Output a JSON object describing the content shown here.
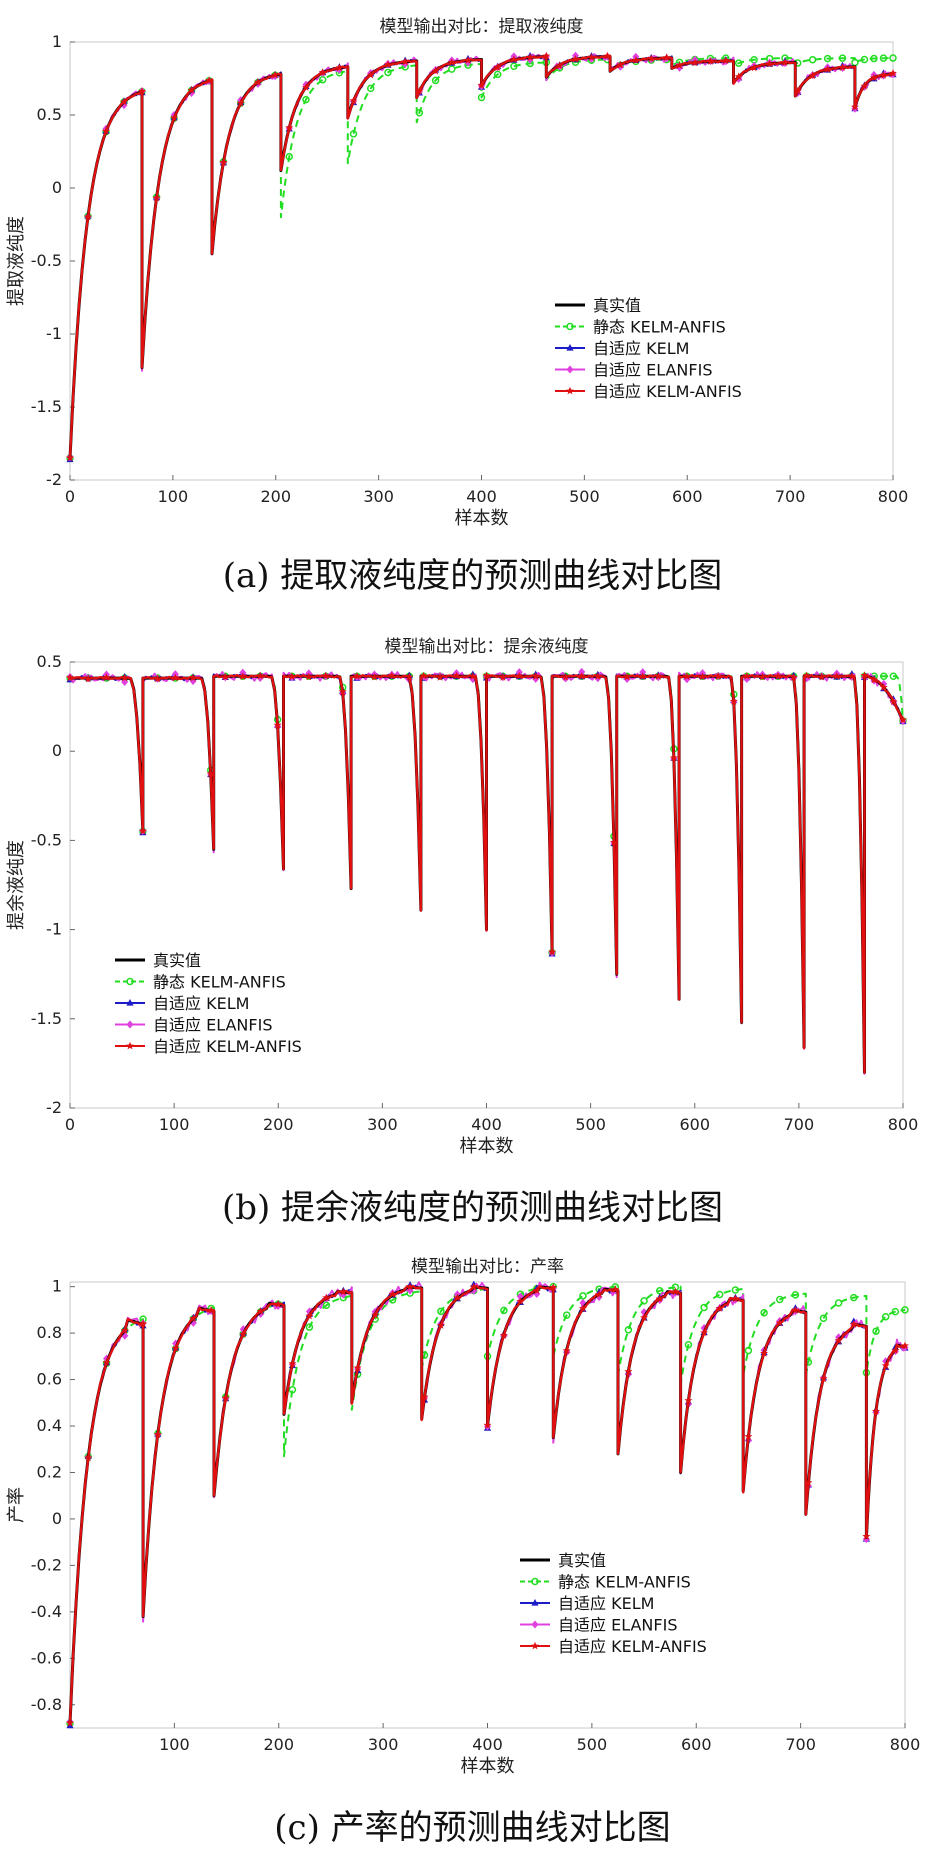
{
  "series_names": [
    "真实值",
    "静态 KELM-ANFIS",
    "自适应 KELM",
    "自适应 ELANFIS",
    "自适应 KELM-ANFIS"
  ],
  "series_colors": [
    "#000000",
    "#22dd22",
    "#1c1cc8",
    "#e040e0",
    "#e01010"
  ],
  "chart_data": [
    {
      "type": "line",
      "title": "模型输出对比：提取液纯度",
      "xlabel": "样本数",
      "ylabel": "提取液纯度",
      "caption": "(a) 提取液纯度的预测曲线对比图",
      "xlim": [
        0,
        800
      ],
      "ylim": [
        -2,
        1
      ],
      "xticks": [
        "0",
        "100",
        "200",
        "300",
        "400",
        "500",
        "600",
        "700",
        "800"
      ],
      "yticks": [
        "-2",
        "-1.5",
        "-1",
        "-0.5",
        "0",
        "0.5",
        "1"
      ],
      "legend_position": "center-right",
      "cycles": [
        {
          "start": 0,
          "min": -1.85,
          "peak": 0.66,
          "end": 70
        },
        {
          "start": 70,
          "min": -1.23,
          "peak": 0.74,
          "end": 138
        },
        {
          "start": 138,
          "min": -0.45,
          "peak": 0.78,
          "end": 205
        },
        {
          "start": 205,
          "min": 0.12,
          "peak": 0.83,
          "end": 270
        },
        {
          "start": 270,
          "min": 0.48,
          "peak": 0.87,
          "end": 337
        },
        {
          "start": 337,
          "min": 0.62,
          "peak": 0.88,
          "end": 400
        },
        {
          "start": 400,
          "min": 0.7,
          "peak": 0.9,
          "end": 463
        },
        {
          "start": 463,
          "min": 0.76,
          "peak": 0.9,
          "end": 525
        },
        {
          "start": 525,
          "min": 0.8,
          "peak": 0.89,
          "end": 585
        },
        {
          "start": 585,
          "min": 0.82,
          "peak": 0.87,
          "end": 645
        },
        {
          "start": 645,
          "min": 0.72,
          "peak": 0.86,
          "end": 705
        },
        {
          "start": 705,
          "min": 0.63,
          "peak": 0.83,
          "end": 763
        },
        {
          "start": 763,
          "min": 0.55,
          "peak": 0.78,
          "end": 800
        }
      ],
      "static_model": {
        "from_cycle": 3,
        "mins": [
          -0.2,
          0.17,
          0.45,
          0.62,
          0.74,
          0.8,
          0.84,
          0.84,
          0.85,
          0.86
        ],
        "peaks": [
          0.8,
          0.84,
          0.85,
          0.86,
          0.88,
          0.88,
          0.89,
          0.89,
          0.89,
          0.89
        ]
      }
    },
    {
      "type": "line",
      "title": "模型输出对比：提余液纯度",
      "xlabel": "样本数",
      "ylabel": "提余液纯度",
      "caption": "(b) 提余液纯度的预测曲线对比图",
      "xlim": [
        0,
        800
      ],
      "ylim": [
        -2,
        0.5
      ],
      "xticks": [
        "0",
        "100",
        "200",
        "300",
        "400",
        "500",
        "600",
        "700",
        "800"
      ],
      "yticks": [
        "-2",
        "-1.5",
        "-1",
        "-0.5",
        "0",
        "0.5"
      ],
      "legend_position": "bottom-left",
      "cycles": [
        {
          "start": 0,
          "min": -0.45,
          "peak": 0.41,
          "end": 70
        },
        {
          "start": 70,
          "min": -0.55,
          "peak": 0.41,
          "end": 138
        },
        {
          "start": 138,
          "min": -0.66,
          "peak": 0.42,
          "end": 205
        },
        {
          "start": 205,
          "min": -0.77,
          "peak": 0.42,
          "end": 270
        },
        {
          "start": 270,
          "min": -0.89,
          "peak": 0.42,
          "end": 337
        },
        {
          "start": 337,
          "min": -1.0,
          "peak": 0.42,
          "end": 400
        },
        {
          "start": 400,
          "min": -1.13,
          "peak": 0.42,
          "end": 463
        },
        {
          "start": 463,
          "min": -1.25,
          "peak": 0.42,
          "end": 525
        },
        {
          "start": 525,
          "min": -1.39,
          "peak": 0.42,
          "end": 585
        },
        {
          "start": 585,
          "min": -1.52,
          "peak": 0.42,
          "end": 645
        },
        {
          "start": 645,
          "min": -1.66,
          "peak": 0.42,
          "end": 705
        },
        {
          "start": 705,
          "min": -1.8,
          "peak": 0.42,
          "end": 763
        },
        {
          "start": 763,
          "min": 0.17,
          "peak": 0.42,
          "end": 800
        }
      ],
      "static_model": {
        "shift": 10,
        "mins": [
          -0.45,
          -0.55,
          -0.66,
          -0.77,
          -0.89,
          -1.0,
          -1.13,
          -1.25,
          -1.39,
          -1.52,
          -1.66,
          -1.8,
          0.17
        ]
      }
    },
    {
      "type": "line",
      "title": "模型输出对比：产率",
      "xlabel": "样本数",
      "ylabel": "产率",
      "caption": "(c) 产率的预测曲线对比图",
      "xlim": [
        0,
        800
      ],
      "ylim": [
        -0.9,
        1.02
      ],
      "xticks": [
        "100",
        "200",
        "300",
        "400",
        "500",
        "600",
        "700",
        "800"
      ],
      "yticks": [
        "-0.8",
        "-0.6",
        "-0.4",
        "-0.2",
        "0",
        "0.2",
        "0.4",
        "0.6",
        "0.8",
        "1"
      ],
      "legend_position": "center-right",
      "cycles": [
        {
          "start": 0,
          "min": -0.88,
          "peak": 0.86,
          "end": 70
        },
        {
          "start": 70,
          "min": -0.42,
          "peak": 0.91,
          "end": 138
        },
        {
          "start": 138,
          "min": 0.1,
          "peak": 0.93,
          "end": 205
        },
        {
          "start": 205,
          "min": 0.45,
          "peak": 0.98,
          "end": 270
        },
        {
          "start": 270,
          "min": 0.5,
          "peak": 1.0,
          "end": 337
        },
        {
          "start": 337,
          "min": 0.43,
          "peak": 1.0,
          "end": 400
        },
        {
          "start": 400,
          "min": 0.4,
          "peak": 1.0,
          "end": 463
        },
        {
          "start": 463,
          "min": 0.35,
          "peak": 0.99,
          "end": 525
        },
        {
          "start": 525,
          "min": 0.28,
          "peak": 0.98,
          "end": 585
        },
        {
          "start": 585,
          "min": 0.2,
          "peak": 0.95,
          "end": 645
        },
        {
          "start": 645,
          "min": 0.12,
          "peak": 0.9,
          "end": 705
        },
        {
          "start": 705,
          "min": 0.02,
          "peak": 0.84,
          "end": 763
        },
        {
          "start": 763,
          "min": -0.08,
          "peak": 0.75,
          "end": 800
        }
      ],
      "static_model": {
        "from_cycle": 3,
        "mins": [
          0.27,
          0.47,
          0.65,
          0.7,
          0.7,
          0.62,
          0.58,
          0.62,
          0.62,
          0.63
        ],
        "peaks": [
          0.96,
          0.98,
          0.99,
          1.0,
          1.0,
          1.0,
          0.99,
          0.97,
          0.96,
          0.9
        ]
      }
    }
  ]
}
